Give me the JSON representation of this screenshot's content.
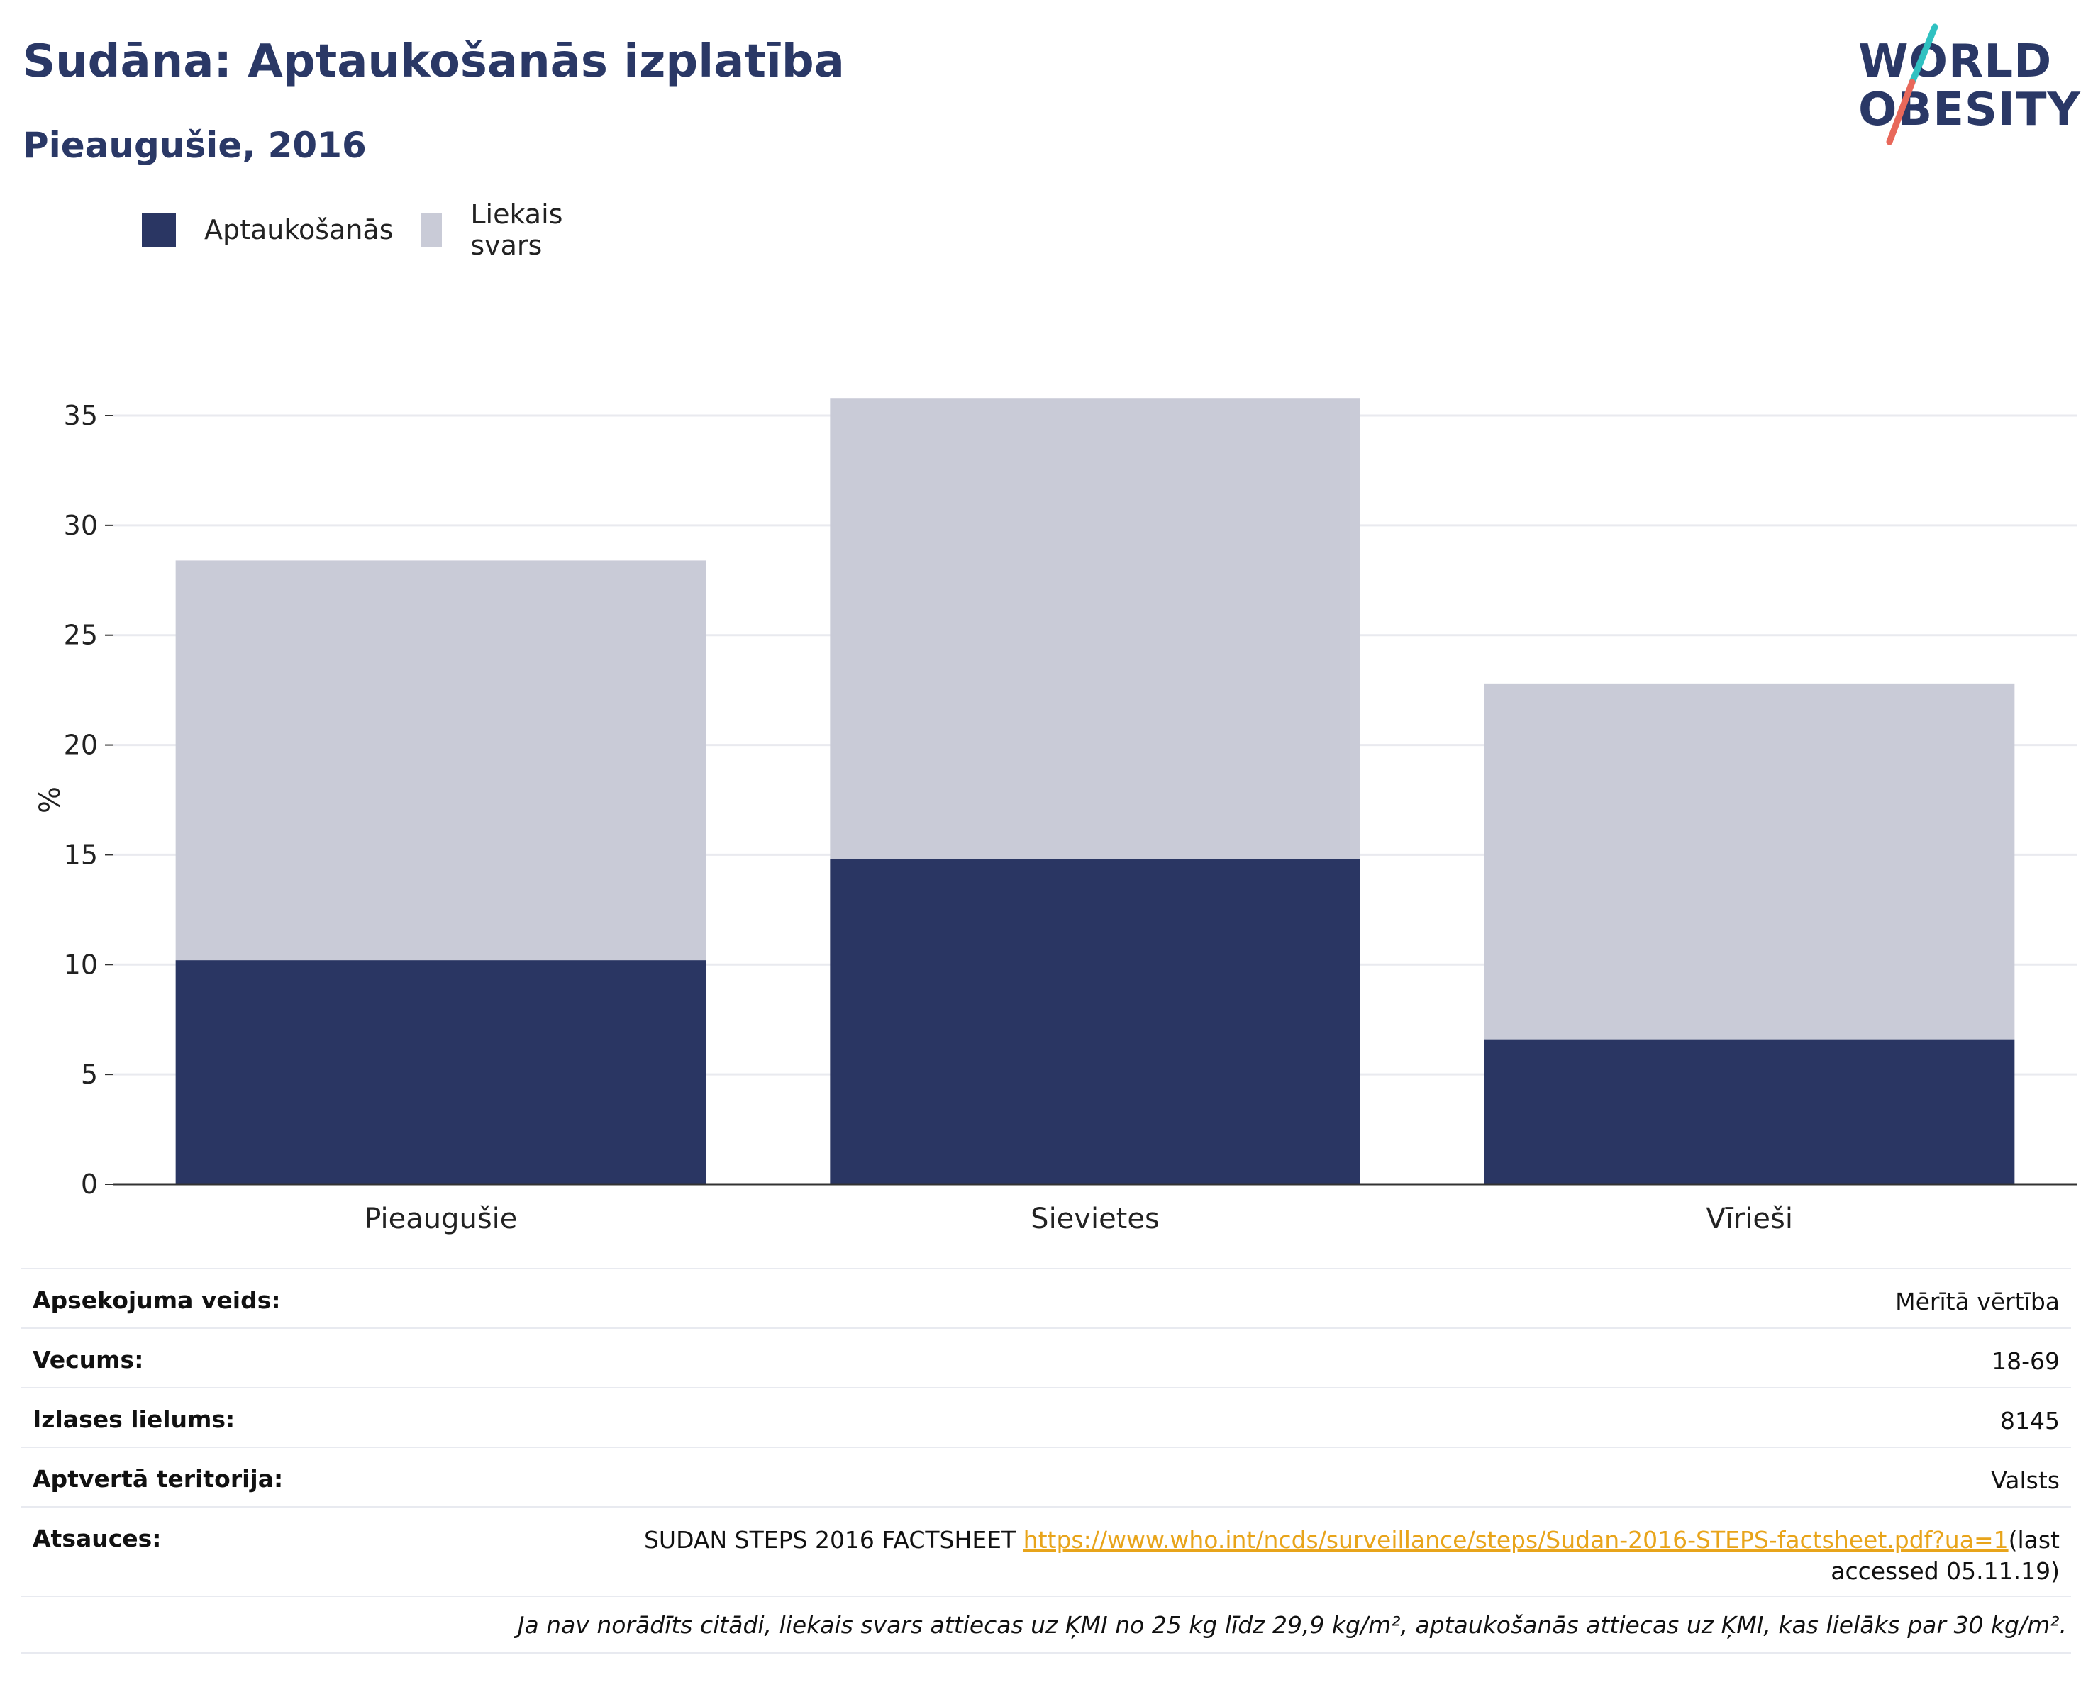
{
  "header": {
    "title": "Sudāna: Aptaukošanās izplatība",
    "subtitle": "Pieaugušie, 2016"
  },
  "logo": {
    "line1": "WORLD",
    "line2": "OBESITY",
    "slash_colors": [
      "#2fc1c1",
      "#e8685a"
    ]
  },
  "colors": {
    "obesity": "#2a3663",
    "overweight": "#c9cbd7",
    "grid": "#e9eaef",
    "axis": "#333333"
  },
  "chart_data": {
    "type": "bar",
    "stacked": true,
    "categories": [
      "Pieaugušie",
      "Sievietes",
      "Vīrieši"
    ],
    "series": [
      {
        "name": "Aptaukošanās",
        "values": [
          10.2,
          14.8,
          6.6
        ]
      },
      {
        "name": "Liekais svars",
        "values": [
          18.2,
          21.0,
          16.2
        ]
      }
    ],
    "ylabel": "%",
    "ylim": [
      0,
      35
    ],
    "yticks": [
      0,
      5,
      10,
      15,
      20,
      25,
      30,
      35
    ],
    "grid": true,
    "legend": "top-left"
  },
  "info": [
    {
      "label": "Apsekojuma veids:",
      "value": "Mērītā vērtība"
    },
    {
      "label": "Vecums:",
      "value": "18-69"
    },
    {
      "label": "Izlases lielums:",
      "value": "8145"
    },
    {
      "label": "Aptvertā teritorija:",
      "value": "Valsts"
    }
  ],
  "reference": {
    "label": "Atsauces:",
    "prefix": "SUDAN STEPS 2016 FACTSHEET ",
    "link": "https://www.who.int/ncds/surveillance/steps/Sudan-2016-STEPS-factsheet.pdf?ua=1",
    "suffix": "(last accessed 05.11.19)"
  },
  "footnote": "Ja nav norādīts citādi, liekais svars attiecas uz ĶMI no 25 kg līdz 29,9 kg/m², aptaukošanās attiecas uz ĶMI, kas lielāks par 30 kg/m²."
}
